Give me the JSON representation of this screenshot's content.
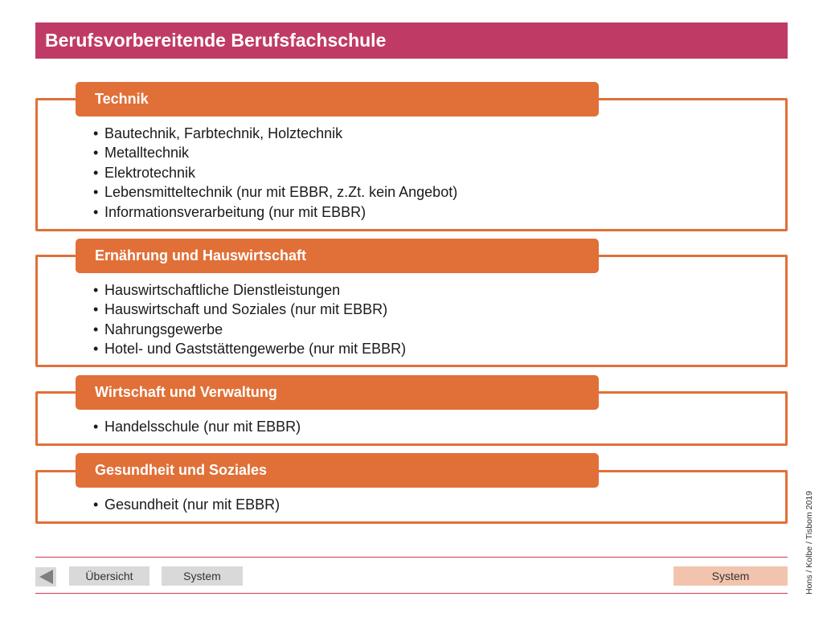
{
  "title": "Berufsvorbereitende Berufsfachschule",
  "colors": {
    "title_bar": "#bf3b65",
    "section_orange": "#e07038",
    "nav_gray": "#d9d9d9",
    "nav_highlight": "#f3c4ad",
    "nav_line": "#cf3a55"
  },
  "sections": [
    {
      "header": "Technik",
      "items": [
        "Bautechnik, Farbtechnik, Holztechnik",
        "Metalltechnik",
        "Elektrotechnik",
        "Lebensmitteltechnik (nur mit EBBR, z.Zt. kein Angebot)",
        "Informationsverarbeitung (nur mit EBBR)"
      ]
    },
    {
      "header": "Ernährung und Hauswirtschaft",
      "items": [
        "Hauswirtschaftliche Dienstleistungen",
        "Hauswirtschaft und Soziales (nur mit EBBR)",
        "Nahrungsgewerbe",
        "Hotel- und Gaststättengewerbe (nur mit EBBR)"
      ]
    },
    {
      "header": "Wirtschaft und Verwaltung",
      "items": [
        "Handelsschule (nur mit EBBR)"
      ]
    },
    {
      "header": "Gesundheit und Soziales",
      "items": [
        "Gesundheit (nur mit EBBR)"
      ]
    }
  ],
  "nav": {
    "back_icon": "triangle-left-icon",
    "overview_label": "Übersicht",
    "system_left_label": "System",
    "system_right_label": "System"
  },
  "copyright": "Hons / Kolbe / Tisbom 2019"
}
